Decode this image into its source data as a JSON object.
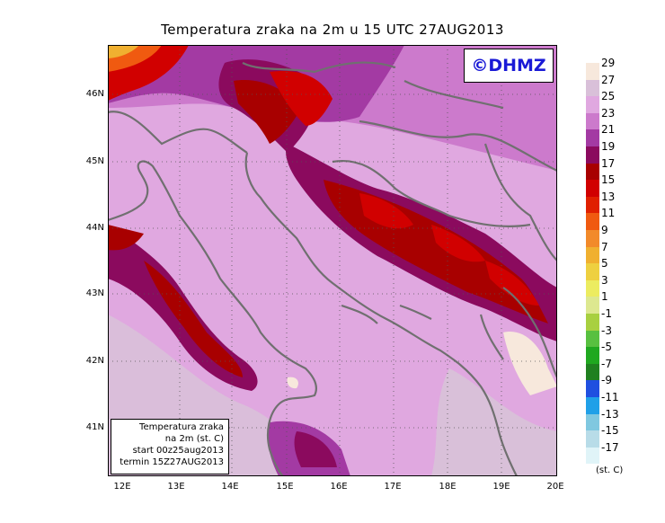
{
  "title": "Temperatura zraka na 2m u 15 UTC 27AUG2013",
  "logo": "©DHMZ",
  "info_box": {
    "line1": "Temperatura zraka",
    "line2": "na 2m (st. C)",
    "line3": "start 00z25aug2013",
    "line4": "termin 15Z27AUG2013"
  },
  "lat_labels": [
    "46N",
    "45N",
    "44N",
    "43N",
    "42N",
    "41N"
  ],
  "lon_labels": [
    "12E",
    "13E",
    "14E",
    "15E",
    "16E",
    "17E",
    "18E",
    "19E",
    "20E"
  ],
  "legend": {
    "unit": "(st. C)",
    "labels": [
      "29",
      "27",
      "25",
      "23",
      "21",
      "19",
      "17",
      "15",
      "13",
      "11",
      "9",
      "7",
      "5",
      "3",
      "1",
      "-1",
      "-3",
      "-5",
      "-7",
      "-9",
      "-11",
      "-13",
      "-15",
      "-17"
    ],
    "colors": [
      "#f7e8dc",
      "#d9c0d9",
      "#e0a8e0",
      "#cc7acc",
      "#a33aa3",
      "#8b0a5e",
      "#a80000",
      "#d10000",
      "#e02000",
      "#f05a10",
      "#f28a2a",
      "#f0b030",
      "#eed040",
      "#ecec60",
      "#dde890",
      "#a8d040",
      "#58c040",
      "#20a820",
      "#208020",
      "#2050e0",
      "#20a0e8",
      "#80c8e0",
      "#b8dce8",
      "#e0f4f8"
    ]
  },
  "map_colors": {
    "sea_main": "#e0a8e0",
    "sea_light": "#d9c0d9",
    "warm_23": "#cc7acc",
    "warm_21": "#a33aa3",
    "dark_19": "#8b0a5e",
    "red_17": "#a80000",
    "red_15": "#d10000",
    "orange": "#f05a10",
    "cream": "#f7e8dc",
    "coast": "#707070"
  }
}
